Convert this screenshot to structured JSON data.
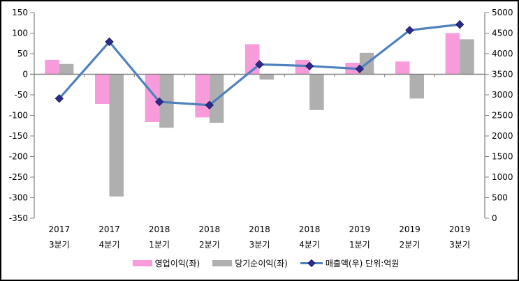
{
  "chart_data": {
    "type": "combo",
    "title": "",
    "categories": [
      [
        "2017",
        "3분기"
      ],
      [
        "2017",
        "4분기"
      ],
      [
        "2018",
        "1분기"
      ],
      [
        "2018",
        "2분기"
      ],
      [
        "2018",
        "3분기"
      ],
      [
        "2018",
        "4분기"
      ],
      [
        "2019",
        "1분기"
      ],
      [
        "2019",
        "2분기"
      ],
      [
        "2019",
        "3분기"
      ]
    ],
    "series": [
      {
        "name": "영업이익(좌)",
        "kind": "bar",
        "axis": "left",
        "color": "#F79BDB",
        "values": [
          35,
          -72,
          -116,
          -105,
          73,
          35,
          28,
          31,
          100
        ]
      },
      {
        "name": "당기순이익(좌)",
        "kind": "bar",
        "axis": "left",
        "color": "#AFAFAF",
        "values": [
          25,
          -297,
          -130,
          -118,
          -13,
          -87,
          52,
          -59,
          85
        ]
      },
      {
        "name": "매출액(우) 단위:억원",
        "kind": "line",
        "axis": "right",
        "color": "#4F81BD",
        "marker_color": "#2D2A8E",
        "marker_outline": "#1F1C6B",
        "marker_shape": "diamond",
        "values": [
          2910,
          4290,
          2830,
          2750,
          3740,
          3700,
          3630,
          4570,
          4710
        ]
      }
    ],
    "left_axis": {
      "min": -350,
      "max": 150,
      "step": 50,
      "ticks": [
        150,
        100,
        50,
        0,
        -50,
        -100,
        -150,
        -200,
        -250,
        -300,
        -350
      ]
    },
    "right_axis": {
      "min": 0,
      "max": 5000,
      "step": 500,
      "ticks": [
        5000,
        4500,
        4000,
        3500,
        3000,
        2500,
        2000,
        1500,
        1000,
        500,
        0
      ]
    },
    "legend_position": "bottom",
    "grid": false,
    "colors": {
      "axis": "#808080",
      "text": "#000000",
      "background": "#FFFFFF",
      "border": "#000000"
    }
  }
}
